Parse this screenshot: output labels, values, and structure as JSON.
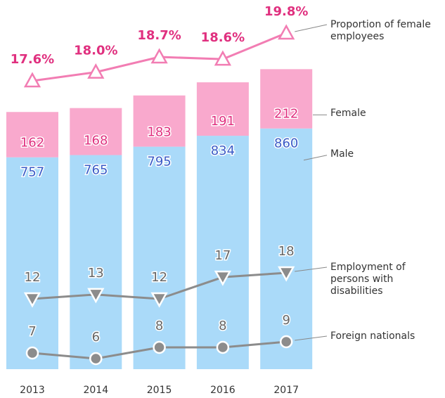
{
  "chart_data": {
    "type": "bar",
    "stacked": true,
    "categories": [
      "2013",
      "2014",
      "2015",
      "2016",
      "2017"
    ],
    "series": [
      {
        "name": "Male",
        "type": "bar",
        "color": "#aadaf9",
        "label_color": "#3a5bc7",
        "values": [
          757,
          765,
          795,
          834,
          860
        ]
      },
      {
        "name": "Female",
        "type": "bar",
        "color": "#f9a9cd",
        "label_color": "#e0307f",
        "values": [
          162,
          168,
          183,
          191,
          212
        ]
      },
      {
        "name": "Proportion of female employees",
        "type": "line",
        "marker": "triangle-up",
        "color": "#f27db3",
        "label_color": "#e0307f",
        "values": [
          17.6,
          18.0,
          18.7,
          18.6,
          19.8
        ],
        "value_labels": [
          "17.6%",
          "18.0%",
          "18.7%",
          "18.6%",
          "19.8%"
        ]
      },
      {
        "name": "Employment of persons with disabilities",
        "type": "line",
        "marker": "triangle-down",
        "color": "#8c8c8c",
        "label_color": "#666666",
        "values": [
          12,
          13,
          12,
          17,
          18
        ]
      },
      {
        "name": "Foreign nationals",
        "type": "line",
        "marker": "circle",
        "color": "#8c8c8c",
        "label_color": "#666666",
        "values": [
          7,
          6,
          8,
          8,
          9
        ]
      }
    ]
  }
}
